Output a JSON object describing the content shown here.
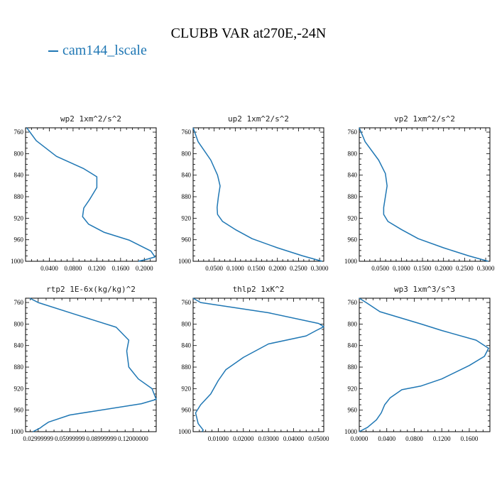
{
  "figure": {
    "title": "CLUBB VAR at270E,-24N",
    "legend": [
      {
        "label": "cam144_lscale",
        "color": "#1f77b4"
      }
    ]
  },
  "chart_data": [
    {
      "type": "line",
      "title": "wp2  1xm^2/s^2",
      "xlim": [
        0.0,
        0.22
      ],
      "ylim": [
        1000,
        752
      ],
      "xticks": [
        0.04,
        0.08,
        0.12,
        0.16,
        0.2
      ],
      "xtick_labels": [
        "0.0400",
        "0.0800",
        "0.1200",
        "0.1600",
        "0.2000"
      ],
      "yticks": [
        760,
        800,
        840,
        880,
        920,
        960,
        1000
      ],
      "ytick_labels": [
        "760",
        "800",
        "840",
        "880",
        "920",
        "960",
        "1000"
      ],
      "series": [
        {
          "color": "#1f77b4",
          "x": [
            0.002,
            0.018,
            0.052,
            0.098,
            0.12,
            0.12,
            0.108,
            0.098,
            0.096,
            0.106,
            0.132,
            0.175,
            0.211,
            0.218,
            0.205,
            0.19
          ],
          "y": [
            752,
            776,
            805,
            828,
            843,
            863,
            885,
            901,
            917,
            931,
            946,
            961,
            981,
            992,
            996,
            1000
          ]
        }
      ]
    },
    {
      "type": "line",
      "title": "up2  1xm^2/s^2",
      "xlim": [
        0.0,
        0.31
      ],
      "ylim": [
        1000,
        752
      ],
      "xticks": [
        0.05,
        0.1,
        0.15,
        0.2,
        0.25,
        0.3
      ],
      "xtick_labels": [
        "0.0500",
        "0.1000",
        "0.1500",
        "0.2000",
        "0.2500",
        "0.3000"
      ],
      "yticks": [
        760,
        800,
        840,
        880,
        920,
        960,
        1000
      ],
      "ytick_labels": [
        "760",
        "800",
        "840",
        "880",
        "920",
        "960",
        "1000"
      ],
      "series": [
        {
          "color": "#1f77b4",
          "x": [
            0.0,
            0.012,
            0.042,
            0.058,
            0.064,
            0.06,
            0.057,
            0.058,
            0.07,
            0.1,
            0.14,
            0.2,
            0.26,
            0.306
          ],
          "y": [
            752,
            778,
            812,
            840,
            860,
            880,
            900,
            913,
            926,
            941,
            958,
            975,
            990,
            1000
          ]
        }
      ]
    },
    {
      "type": "line",
      "title": "vp2  1xm^2/s^2",
      "xlim": [
        0.0,
        0.31
      ],
      "ylim": [
        1000,
        752
      ],
      "xticks": [
        0.05,
        0.1,
        0.15,
        0.2,
        0.25,
        0.3
      ],
      "xtick_labels": [
        "0.0500",
        "0.1000",
        "0.1500",
        "0.2000",
        "0.2500",
        "0.3000"
      ],
      "yticks": [
        760,
        800,
        840,
        880,
        920,
        960,
        1000
      ],
      "ytick_labels": [
        "760",
        "800",
        "840",
        "880",
        "920",
        "960",
        "1000"
      ],
      "series": [
        {
          "color": "#1f77b4",
          "x": [
            0.0,
            0.014,
            0.046,
            0.062,
            0.066,
            0.062,
            0.058,
            0.058,
            0.068,
            0.1,
            0.14,
            0.2,
            0.26,
            0.306
          ],
          "y": [
            752,
            778,
            812,
            837,
            860,
            880,
            900,
            913,
            926,
            941,
            958,
            975,
            990,
            1000
          ]
        }
      ]
    },
    {
      "type": "line",
      "title": "rtp2  1E-6x(kg/kg)^2",
      "xlim": [
        0.018,
        0.142
      ],
      "ylim": [
        1000,
        752
      ],
      "xticks": [
        0.03,
        0.06,
        0.09,
        0.12
      ],
      "xtick_labels": [
        "0.02999999",
        "0.05999999",
        "0.08999999",
        "0.12000000"
      ],
      "yticks": [
        760,
        800,
        840,
        880,
        920,
        960,
        1000
      ],
      "ytick_labels": [
        "760",
        "800",
        "840",
        "880",
        "920",
        "960",
        "1000"
      ],
      "series": [
        {
          "color": "#1f77b4",
          "x": [
            0.022,
            0.03,
            0.065,
            0.104,
            0.116,
            0.114,
            0.116,
            0.125,
            0.138,
            0.142,
            0.128,
            0.06,
            0.04,
            0.034,
            0.032,
            0.025
          ],
          "y": [
            752,
            760,
            782,
            806,
            830,
            850,
            880,
            902,
            920,
            940,
            948,
            969,
            982,
            990,
            993,
            1000
          ]
        }
      ]
    },
    {
      "type": "line",
      "title": "thlp2  1xK^2",
      "xlim": [
        0.0,
        0.052
      ],
      "ylim": [
        1000,
        752
      ],
      "xticks": [
        0.01,
        0.02,
        0.03,
        0.04,
        0.05
      ],
      "xtick_labels": [
        "0.01000",
        "0.02000",
        "0.03000",
        "0.04000",
        "0.05000"
      ],
      "yticks": [
        760,
        800,
        840,
        880,
        920,
        960,
        1000
      ],
      "ytick_labels": [
        "760",
        "800",
        "840",
        "880",
        "920",
        "960",
        "1000"
      ],
      "series": [
        {
          "color": "#1f77b4",
          "x": [
            0.0,
            0.003,
            0.03,
            0.05,
            0.052,
            0.049,
            0.045,
            0.03,
            0.02,
            0.013,
            0.01,
            0.007,
            0.003,
            0.001,
            0.002,
            0.004,
            0.0035
          ],
          "y": [
            752,
            760,
            779,
            799,
            805,
            812,
            822,
            837,
            862,
            885,
            905,
            930,
            950,
            965,
            985,
            997,
            1000
          ]
        }
      ]
    },
    {
      "type": "line",
      "title": "wp3  1xm^3/s^3",
      "xlim": [
        0.0,
        0.19
      ],
      "ylim": [
        1000,
        752
      ],
      "xticks": [
        0.0,
        0.04,
        0.08,
        0.12,
        0.16
      ],
      "xtick_labels": [
        "0.0000",
        "0.0400",
        "0.0800",
        "0.1200",
        "0.1600"
      ],
      "yticks": [
        760,
        800,
        840,
        880,
        920,
        960,
        1000
      ],
      "ytick_labels": [
        "760",
        "800",
        "840",
        "880",
        "920",
        "960",
        "1000"
      ],
      "series": [
        {
          "color": "#1f77b4",
          "x": [
            0.0,
            0.01,
            0.03,
            0.09,
            0.12,
            0.17,
            0.188,
            0.182,
            0.16,
            0.12,
            0.09,
            0.062,
            0.045,
            0.037,
            0.032,
            0.025,
            0.012,
            0.0
          ],
          "y": [
            752,
            760,
            777,
            800,
            812,
            830,
            845,
            860,
            877,
            902,
            915,
            922,
            937,
            950,
            965,
            978,
            992,
            1000
          ]
        }
      ]
    }
  ]
}
